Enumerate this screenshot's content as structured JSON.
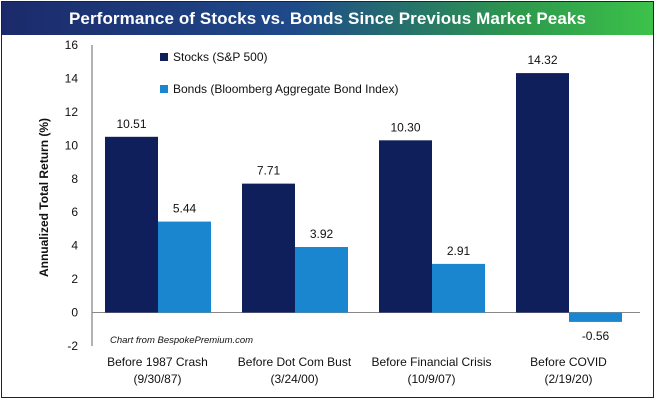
{
  "chart_data": {
    "type": "bar",
    "title": "Performance of Stocks vs. Bonds Since Previous Market Peaks",
    "ylabel": "Annualized Total Return (%)",
    "xlabel": "",
    "ylim": [
      -2,
      16
    ],
    "yticks": [
      -2,
      0,
      2,
      4,
      6,
      8,
      10,
      12,
      14,
      16
    ],
    "categories": [
      [
        "Before 1987 Crash",
        "(9/30/87)"
      ],
      [
        "Before Dot Com Bust",
        "(3/24/00)"
      ],
      [
        "Before Financial Crisis",
        "(10/9/07)"
      ],
      [
        "Before COVID",
        "(2/19/20)"
      ]
    ],
    "series": [
      {
        "name": "Stocks (S&P 500)",
        "values": [
          10.51,
          7.71,
          10.3,
          14.32
        ],
        "labels": [
          "10.51",
          "7.71",
          "10.30",
          "14.32"
        ],
        "color": "#0f1f5c"
      },
      {
        "name": "Bonds (Bloomberg Aggregate Bond Index)",
        "values": [
          5.44,
          3.92,
          2.91,
          -0.56
        ],
        "labels": [
          "5.44",
          "3.92",
          "2.91",
          "-0.56"
        ],
        "color": "#1a86cf"
      }
    ],
    "legend": "top-left",
    "grid": false,
    "annotation": "Chart from BespokePremium.com"
  }
}
